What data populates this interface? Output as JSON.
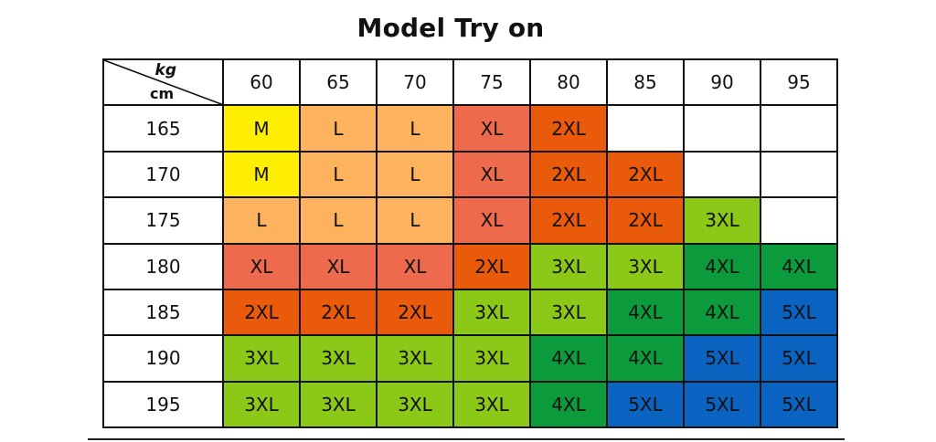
{
  "title": "Model Try on",
  "corner": {
    "top_label": "kg",
    "bottom_label": "cm"
  },
  "weights_kg": [
    "60",
    "65",
    "70",
    "75",
    "80",
    "85",
    "90",
    "95"
  ],
  "heights_cm": [
    "165",
    "170",
    "175",
    "180",
    "185",
    "190",
    "195"
  ],
  "size_colors": {
    "M": "#ffee00",
    "L": "#fdb25e",
    "XL": "#ee6a4c",
    "2XL": "#ea5a0b",
    "3XL": "#8cc817",
    "4XL": "#0b9b3c",
    "5XL": "#0a63c0"
  },
  "rows": [
    [
      "M",
      "L",
      "L",
      "XL",
      "2XL",
      "",
      "",
      ""
    ],
    [
      "M",
      "L",
      "L",
      "XL",
      "2XL",
      "2XL",
      "",
      ""
    ],
    [
      "L",
      "L",
      "L",
      "XL",
      "2XL",
      "2XL",
      "3XL",
      ""
    ],
    [
      "XL",
      "XL",
      "XL",
      "2XL",
      "3XL",
      "3XL",
      "4XL",
      "4XL"
    ],
    [
      "2XL",
      "2XL",
      "2XL",
      "3XL",
      "3XL",
      "4XL",
      "4XL",
      "5XL"
    ],
    [
      "3XL",
      "3XL",
      "3XL",
      "3XL",
      "4XL",
      "4XL",
      "5XL",
      "5XL"
    ],
    [
      "3XL",
      "3XL",
      "3XL",
      "3XL",
      "4XL",
      "5XL",
      "5XL",
      "5XL"
    ]
  ]
}
